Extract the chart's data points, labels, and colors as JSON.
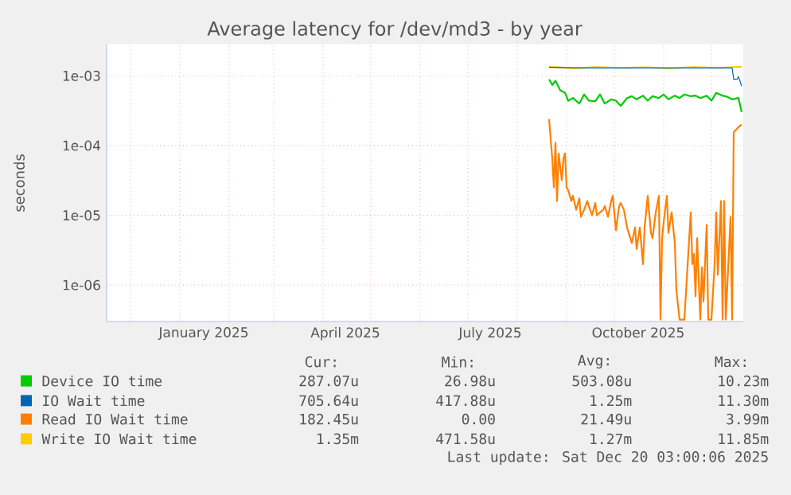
{
  "chart_data": {
    "type": "line",
    "title": "Average latency for /dev/md3 - by year",
    "ylabel": "seconds",
    "log": "y",
    "grid": true,
    "legend": "bottom",
    "xlim": [
      "2024-11-16",
      "2025-12-21"
    ],
    "ylim": [
      3e-07,
      0.00285
    ],
    "xticks": [
      {
        "value": "2024-12-01",
        "label": null
      },
      {
        "value": "2025-01-01",
        "label": null
      },
      {
        "value": "2025-02-01",
        "label": null
      },
      {
        "value": "2025-03-01",
        "label": null
      },
      {
        "value": "2025-04-01",
        "label": null
      },
      {
        "value": "2025-05-01",
        "label": null
      },
      {
        "value": "2025-06-01",
        "label": null
      },
      {
        "value": "2025-07-01",
        "label": null
      },
      {
        "value": "2025-08-01",
        "label": null
      },
      {
        "value": "2025-09-01",
        "label": null
      },
      {
        "value": "2025-10-01",
        "label": null
      },
      {
        "value": "2025-11-01",
        "label": null
      },
      {
        "value": "2025-12-01",
        "label": null
      },
      {
        "value": "2025-01-16",
        "label": "January 2025"
      },
      {
        "value": "2025-04-15",
        "label": "April 2025"
      },
      {
        "value": "2025-07-15",
        "label": "July 2025"
      },
      {
        "value": "2025-10-16",
        "label": "October 2025"
      }
    ],
    "yticks": [
      {
        "value": 1e-06,
        "label": "1e-06"
      },
      {
        "value": 1e-05,
        "label": "1e-05"
      },
      {
        "value": 0.0001,
        "label": "1e-04"
      },
      {
        "value": 0.001,
        "label": "1e-03"
      }
    ],
    "series": [
      {
        "name": "Device IO time",
        "color": "#00cc00",
        "x": [
          "2025-08-21",
          "2025-08-23",
          "2025-08-25",
          "2025-08-28",
          "2025-08-31",
          "2025-09-02",
          "2025-09-05",
          "2025-09-09",
          "2025-09-12",
          "2025-09-15",
          "2025-09-19",
          "2025-09-22",
          "2025-09-25",
          "2025-09-29",
          "2025-10-02",
          "2025-10-05",
          "2025-10-09",
          "2025-10-12",
          "2025-10-15",
          "2025-10-19",
          "2025-10-22",
          "2025-10-25",
          "2025-10-29",
          "2025-11-01",
          "2025-11-04",
          "2025-11-08",
          "2025-11-11",
          "2025-11-14",
          "2025-11-18",
          "2025-11-21",
          "2025-11-24",
          "2025-11-28",
          "2025-12-01",
          "2025-12-04",
          "2025-12-08",
          "2025-12-11",
          "2025-12-14",
          "2025-12-18",
          "2025-12-20"
        ],
        "values": [
          0.00089,
          0.00074,
          0.00085,
          0.00062,
          0.00057,
          0.00044,
          0.00048,
          0.0004,
          0.00054,
          0.00044,
          0.00043,
          0.00054,
          0.0004,
          0.00046,
          0.00044,
          0.00037,
          0.00048,
          0.00051,
          0.00046,
          0.00052,
          0.00044,
          0.00051,
          0.00048,
          0.00054,
          0.00046,
          0.00052,
          0.00048,
          0.00054,
          0.00051,
          0.00052,
          0.00048,
          0.00052,
          0.00044,
          0.00057,
          0.00052,
          0.0005,
          0.00046,
          0.00048,
          0.0003
        ]
      },
      {
        "name": "IO Wait time",
        "color": "#0066b3",
        "x": [
          "2025-08-21",
          "2025-09-15",
          "2025-10-15",
          "2025-11-15",
          "2025-12-12",
          "2025-12-14",
          "2025-12-15",
          "2025-12-17",
          "2025-12-18",
          "2025-12-20"
        ],
        "values": [
          0.00132,
          0.0013,
          0.0013,
          0.0013,
          0.0013,
          0.0013,
          0.00089,
          0.00089,
          0.00097,
          0.00071
        ]
      },
      {
        "name": "Read IO Wait time",
        "color": "#ff8000",
        "x": [
          "2025-08-21",
          "2025-08-23",
          "2025-08-24",
          "2025-08-25",
          "2025-08-26",
          "2025-08-27",
          "2025-08-29",
          "2025-08-30",
          "2025-08-31",
          "2025-09-01",
          "2025-09-02",
          "2025-09-04",
          "2025-09-05",
          "2025-09-07",
          "2025-09-09",
          "2025-09-10",
          "2025-09-12",
          "2025-09-14",
          "2025-09-15",
          "2025-09-17",
          "2025-09-19",
          "2025-09-20",
          "2025-09-22",
          "2025-09-24",
          "2025-09-25",
          "2025-09-27",
          "2025-09-29",
          "2025-09-30",
          "2025-10-02",
          "2025-10-04",
          "2025-10-05",
          "2025-10-07",
          "2025-10-09",
          "2025-10-10",
          "2025-10-12",
          "2025-10-14",
          "2025-10-15",
          "2025-10-17",
          "2025-10-19",
          "2025-10-20",
          "2025-10-22",
          "2025-10-24",
          "2025-10-25",
          "2025-10-27",
          "2025-10-29",
          "2025-10-30",
          "2025-10-31",
          "2025-11-01",
          "2025-11-03",
          "2025-11-04",
          "2025-11-06",
          "2025-11-08",
          "2025-11-09",
          "2025-11-11",
          "2025-11-14",
          "2025-11-18",
          "2025-11-19",
          "2025-11-20",
          "2025-11-21",
          "2025-11-22",
          "2025-11-24",
          "2025-11-25",
          "2025-11-26",
          "2025-11-28",
          "2025-11-29",
          "2025-12-01",
          "2025-12-03",
          "2025-12-04",
          "2025-12-05",
          "2025-12-07",
          "2025-12-08",
          "2025-12-09",
          "2025-12-10",
          "2025-12-13",
          "2025-12-14",
          "2025-12-15",
          "2025-12-18",
          "2025-12-20"
        ],
        "values": [
          0.00024,
          6.5e-05,
          2.5e-05,
          0.00011,
          1.6e-05,
          7.7e-05,
          3.2e-05,
          6.5e-05,
          7.7e-05,
          2.5e-05,
          2.3e-05,
          1.6e-05,
          1.9e-05,
          1.2e-05,
          1.75e-05,
          9.5e-06,
          1.2e-05,
          1.6e-05,
          1.35e-05,
          1e-05,
          1.5e-05,
          1e-05,
          1.1e-05,
          1.2e-05,
          1.35e-05,
          9.5e-06,
          1.6e-05,
          1.9e-05,
          6.1e-06,
          1.35e-05,
          1.5e-05,
          1.2e-05,
          6.7e-06,
          5.6e-06,
          4e-06,
          6.7e-06,
          3.3e-06,
          6.7e-06,
          2e-06,
          6.7e-06,
          1.9e-05,
          5.6e-06,
          4.7e-06,
          1.1e-05,
          1.9e-05,
          3.2e-07,
          4.7e-06,
          8e-06,
          1.9e-05,
          5.6e-06,
          1.1e-05,
          4e-06,
          8.3e-07,
          3.2e-07,
          3.2e-07,
          1.1e-05,
          2e-06,
          2.8e-06,
          6.9e-07,
          4.7e-06,
          3.2e-07,
          1.8e-06,
          5.8e-07,
          7.3e-06,
          3.2e-07,
          3.2e-07,
          2e-06,
          1.1e-05,
          1.4e-06,
          1.6e-05,
          3.2e-07,
          1.6e-05,
          3.2e-07,
          9.5e-06,
          3.2e-07,
          0.000155,
          0.000184,
          0.0002
        ]
      },
      {
        "name": "Write IO Wait time",
        "color": "#ffcc00",
        "x": [
          "2025-08-21",
          "2025-09-05",
          "2025-09-20",
          "2025-10-05",
          "2025-10-20",
          "2025-11-05",
          "2025-11-20",
          "2025-12-05",
          "2025-12-20"
        ],
        "values": [
          0.00135,
          0.00128,
          0.00133,
          0.0013,
          0.00132,
          0.00128,
          0.00133,
          0.0013,
          0.00135
        ]
      }
    ],
    "annotations": [
      "Cur:",
      "Min:",
      "Avg:",
      "Max:",
      "287.07u",
      "26.98u",
      "503.08u",
      "10.23m",
      "705.64u",
      "417.88u",
      "1.25m",
      "11.30m",
      "182.45u",
      "0.00",
      "21.49u",
      "3.99m",
      "1.35m",
      "471.58u",
      "1.27m",
      "11.85m",
      "Last update: Sat Dec 20 03:00:06 2025"
    ]
  }
}
